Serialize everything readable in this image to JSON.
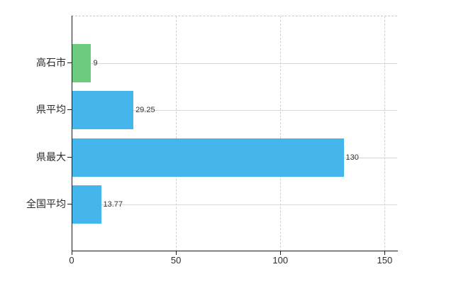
{
  "chart": {
    "background": "#ffffff",
    "axis_color": "#1a1a1a",
    "gridline_color": "#d6d6d6"
  },
  "chart_data": {
    "type": "bar",
    "orientation": "horizontal",
    "title": "",
    "xlabel": "",
    "ylabel": "",
    "categories": [
      "高石市",
      "県平均",
      "県最大",
      "全国平均"
    ],
    "values": [
      9,
      29.25,
      130,
      13.77
    ],
    "value_labels": [
      "9",
      "29.25",
      "130",
      "13.77"
    ],
    "bar_colors": [
      "#6ccb7e",
      "#45b6ec",
      "#45b6ec",
      "#45b6ec"
    ],
    "x_ticks": [
      0,
      50,
      100,
      150
    ],
    "x_tick_labels": [
      "0",
      "50",
      "100",
      "150"
    ],
    "xlim": [
      0,
      156
    ],
    "grid": "on",
    "legend": "none"
  }
}
